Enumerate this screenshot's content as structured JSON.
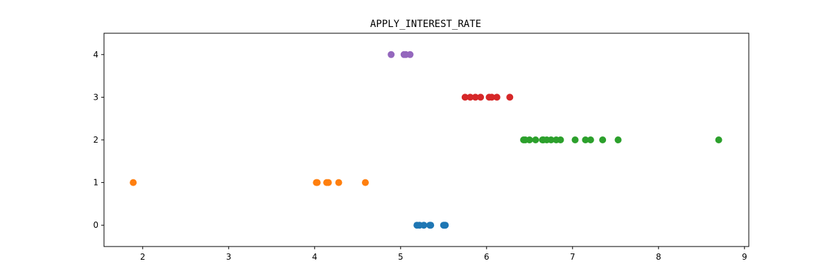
{
  "chart_data": {
    "type": "scatter",
    "title": "APPLY_INTEREST_RATE",
    "xlabel": "",
    "ylabel": "",
    "xlim": [
      1.55,
      9.05
    ],
    "ylim": [
      -0.5,
      4.5
    ],
    "x_ticks": [
      2,
      3,
      4,
      5,
      6,
      7,
      8,
      9
    ],
    "y_ticks": [
      0,
      1,
      2,
      3,
      4
    ],
    "grid": false,
    "legend": "none",
    "series": [
      {
        "color": "#1f77b4",
        "points": [
          {
            "x": 5.19,
            "y": 0
          },
          {
            "x": 5.22,
            "y": 0
          },
          {
            "x": 5.27,
            "y": 0
          },
          {
            "x": 5.34,
            "y": 0
          },
          {
            "x": 5.35,
            "y": 0
          },
          {
            "x": 5.5,
            "y": 0
          },
          {
            "x": 5.51,
            "y": 0
          },
          {
            "x": 5.52,
            "y": 0
          }
        ]
      },
      {
        "color": "#ff7f0e",
        "points": [
          {
            "x": 1.89,
            "y": 1
          },
          {
            "x": 4.02,
            "y": 1
          },
          {
            "x": 4.03,
            "y": 1
          },
          {
            "x": 4.14,
            "y": 1
          },
          {
            "x": 4.16,
            "y": 1
          },
          {
            "x": 4.28,
            "y": 1
          },
          {
            "x": 4.59,
            "y": 1
          }
        ]
      },
      {
        "color": "#2ca02c",
        "points": [
          {
            "x": 6.43,
            "y": 2
          },
          {
            "x": 6.45,
            "y": 2
          },
          {
            "x": 6.5,
            "y": 2
          },
          {
            "x": 6.57,
            "y": 2
          },
          {
            "x": 6.65,
            "y": 2
          },
          {
            "x": 6.66,
            "y": 2
          },
          {
            "x": 6.7,
            "y": 2
          },
          {
            "x": 6.75,
            "y": 2
          },
          {
            "x": 6.81,
            "y": 2
          },
          {
            "x": 6.86,
            "y": 2
          },
          {
            "x": 7.03,
            "y": 2
          },
          {
            "x": 7.15,
            "y": 2
          },
          {
            "x": 7.21,
            "y": 2
          },
          {
            "x": 7.35,
            "y": 2
          },
          {
            "x": 7.53,
            "y": 2
          },
          {
            "x": 8.7,
            "y": 2
          }
        ]
      },
      {
        "color": "#d62728",
        "points": [
          {
            "x": 5.75,
            "y": 3
          },
          {
            "x": 5.81,
            "y": 3
          },
          {
            "x": 5.87,
            "y": 3
          },
          {
            "x": 5.93,
            "y": 3
          },
          {
            "x": 6.03,
            "y": 3
          },
          {
            "x": 6.06,
            "y": 3
          },
          {
            "x": 6.12,
            "y": 3
          },
          {
            "x": 6.27,
            "y": 3
          }
        ]
      },
      {
        "color": "#9467bd",
        "points": [
          {
            "x": 4.89,
            "y": 4
          },
          {
            "x": 5.04,
            "y": 4
          },
          {
            "x": 5.06,
            "y": 4
          },
          {
            "x": 5.11,
            "y": 4
          }
        ]
      }
    ]
  }
}
